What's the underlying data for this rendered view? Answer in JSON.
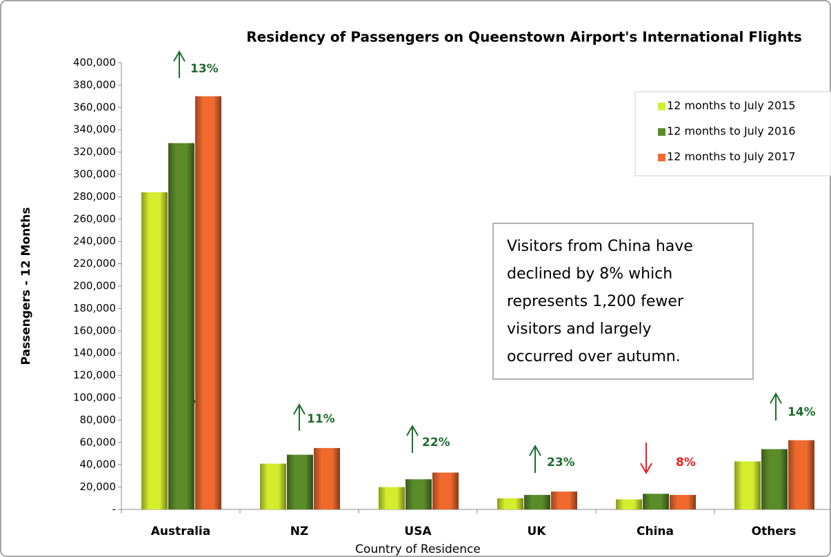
{
  "chart_data": {
    "type": "bar",
    "title": "Residency of Passengers on Queenstown Airport's International Flights",
    "ylabel": "Passengers - 12 Months",
    "xlabel": "Country of Residence",
    "categories": [
      "Australia",
      "NZ",
      "USA",
      "UK",
      "China",
      "Others"
    ],
    "series": [
      {
        "name": "12 months to July 2015",
        "color": "#d4ee2e",
        "values": [
          284000,
          41000,
          20000,
          10000,
          9000,
          43000
        ]
      },
      {
        "name": "12 months to July 2016",
        "color": "#5b8c2a",
        "values": [
          328000,
          49000,
          27000,
          13000,
          14000,
          54000
        ]
      },
      {
        "name": "12 months to July 2017",
        "color": "#f06a2e",
        "values": [
          370000,
          55000,
          33000,
          16000,
          13000,
          62000
        ]
      }
    ],
    "ylim": [
      0,
      400000
    ],
    "yticks": [
      {
        "value": 0,
        "label": "-"
      },
      {
        "value": 20000,
        "label": "20,000"
      },
      {
        "value": 40000,
        "label": "40,000"
      },
      {
        "value": 60000,
        "label": "60,000"
      },
      {
        "value": 80000,
        "label": "80,000"
      },
      {
        "value": 100000,
        "label": "100,000"
      },
      {
        "value": 120000,
        "label": "120,000"
      },
      {
        "value": 140000,
        "label": "140,000"
      },
      {
        "value": 160000,
        "label": "160,000"
      },
      {
        "value": 180000,
        "label": "180,000"
      },
      {
        "value": 200000,
        "label": "200,000"
      },
      {
        "value": 220000,
        "label": "220,000"
      },
      {
        "value": 240000,
        "label": "240,000"
      },
      {
        "value": 260000,
        "label": "260,000"
      },
      {
        "value": 280000,
        "label": "280,000"
      },
      {
        "value": 300000,
        "label": "300,000"
      },
      {
        "value": 320000,
        "label": "320,000"
      },
      {
        "value": 340000,
        "label": "340,000"
      },
      {
        "value": 360000,
        "label": "360,000"
      },
      {
        "value": 380000,
        "label": "380,000"
      },
      {
        "value": 400000,
        "label": "400,000"
      }
    ],
    "legend": "upper right",
    "annotations": [
      {
        "text": "13%",
        "direction": "up",
        "color": "#1e6b2e"
      },
      {
        "text": "11%",
        "direction": "up",
        "color": "#1e6b2e"
      },
      {
        "text": "22%",
        "direction": "up",
        "color": "#1e6b2e"
      },
      {
        "text": "23%",
        "direction": "up",
        "color": "#1e6b2e"
      },
      {
        "text": "8%",
        "direction": "down",
        "color": "#ee1c1c"
      },
      {
        "text": "14%",
        "direction": "up",
        "color": "#1e6b2e"
      }
    ],
    "note": [
      "Visitors from China have",
      "declined by 8% which",
      "represents 1,200 fewer",
      "visitors and largely",
      "occurred over autumn."
    ]
  }
}
